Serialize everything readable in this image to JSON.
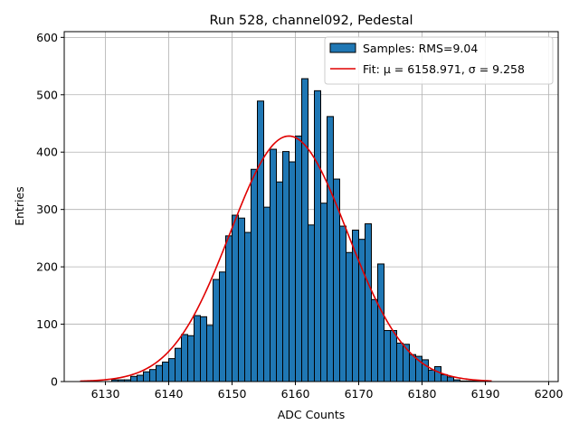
{
  "chart_data": {
    "type": "bar",
    "title": "Run 528, channel092, Pedestal",
    "xlabel": "ADC Counts",
    "ylabel": "Entries",
    "xlim": [
      6123.5,
      6201.5
    ],
    "ylim": [
      0,
      610
    ],
    "xticks": [
      6130,
      6140,
      6150,
      6160,
      6170,
      6180,
      6190,
      6200
    ],
    "yticks": [
      0,
      100,
      200,
      300,
      400,
      500,
      600
    ],
    "grid": true,
    "legend_position": "top-right",
    "bin_width": 1,
    "bins": [
      6126,
      6127,
      6128,
      6129,
      6130,
      6131,
      6132,
      6133,
      6134,
      6135,
      6136,
      6137,
      6138,
      6139,
      6140,
      6141,
      6142,
      6143,
      6144,
      6145,
      6146,
      6147,
      6148,
      6149,
      6150,
      6151,
      6152,
      6153,
      6154,
      6155,
      6156,
      6157,
      6158,
      6159,
      6160,
      6161,
      6162,
      6163,
      6164,
      6165,
      6166,
      6167,
      6168,
      6169,
      6170,
      6171,
      6172,
      6173,
      6174,
      6175,
      6176,
      6177,
      6178,
      6179,
      6180,
      6181,
      6182,
      6183,
      6184,
      6185,
      6186,
      6187,
      6188,
      6189,
      6190,
      6191,
      6192,
      6193,
      6194,
      6195,
      6196,
      6197
    ],
    "counts": [
      0,
      0,
      0,
      0,
      0,
      3,
      3,
      3,
      9,
      11,
      17,
      21,
      28,
      34,
      40,
      58,
      82,
      80,
      115,
      113,
      98,
      178,
      191,
      254,
      290,
      285,
      260,
      370,
      489,
      304,
      405,
      348,
      401,
      383,
      428,
      528,
      273,
      507,
      311,
      462,
      353,
      271,
      225,
      264,
      248,
      275,
      143,
      205,
      89,
      89,
      67,
      65,
      47,
      44,
      38,
      20,
      26,
      12,
      8,
      3,
      1,
      1,
      1,
      1,
      0,
      0,
      0,
      0,
      0,
      0,
      0,
      0
    ],
    "series": [
      {
        "name": "Samples: RMS=9.04",
        "type": "histogram",
        "color": "#1f77b4",
        "edgecolor": "#000000"
      },
      {
        "name": "Fit: μ = 6158.971, σ = 9.258",
        "type": "gaussian",
        "color": "#e00000",
        "mu": 6158.971,
        "sigma": 9.258,
        "amplitude": 428,
        "x_range": [
          6126,
          6191
        ]
      }
    ]
  }
}
